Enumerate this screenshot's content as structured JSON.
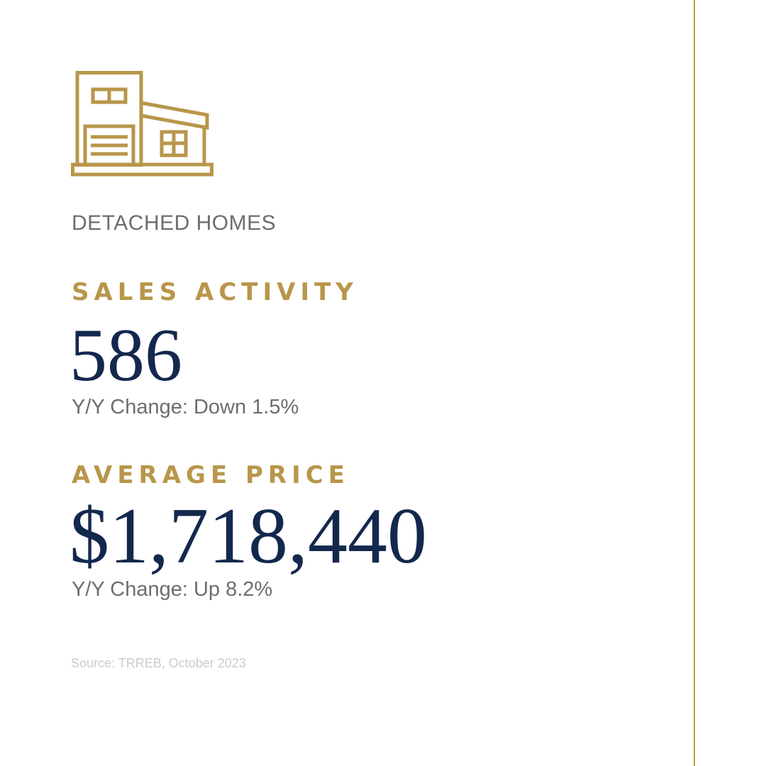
{
  "accent_color": "#b8964a",
  "value_color": "#13284d",
  "icon": "detached-house-icon",
  "category_label": "DETACHED HOMES",
  "sales": {
    "heading": "SALES ACTIVITY",
    "value": "586",
    "change": "Y/Y Change: Down 1.5%"
  },
  "price": {
    "heading": "AVERAGE PRICE",
    "value": "$1,718,440",
    "change": "Y/Y Change: Up 8.2%"
  },
  "source": "Source: TRREB, October 2023"
}
